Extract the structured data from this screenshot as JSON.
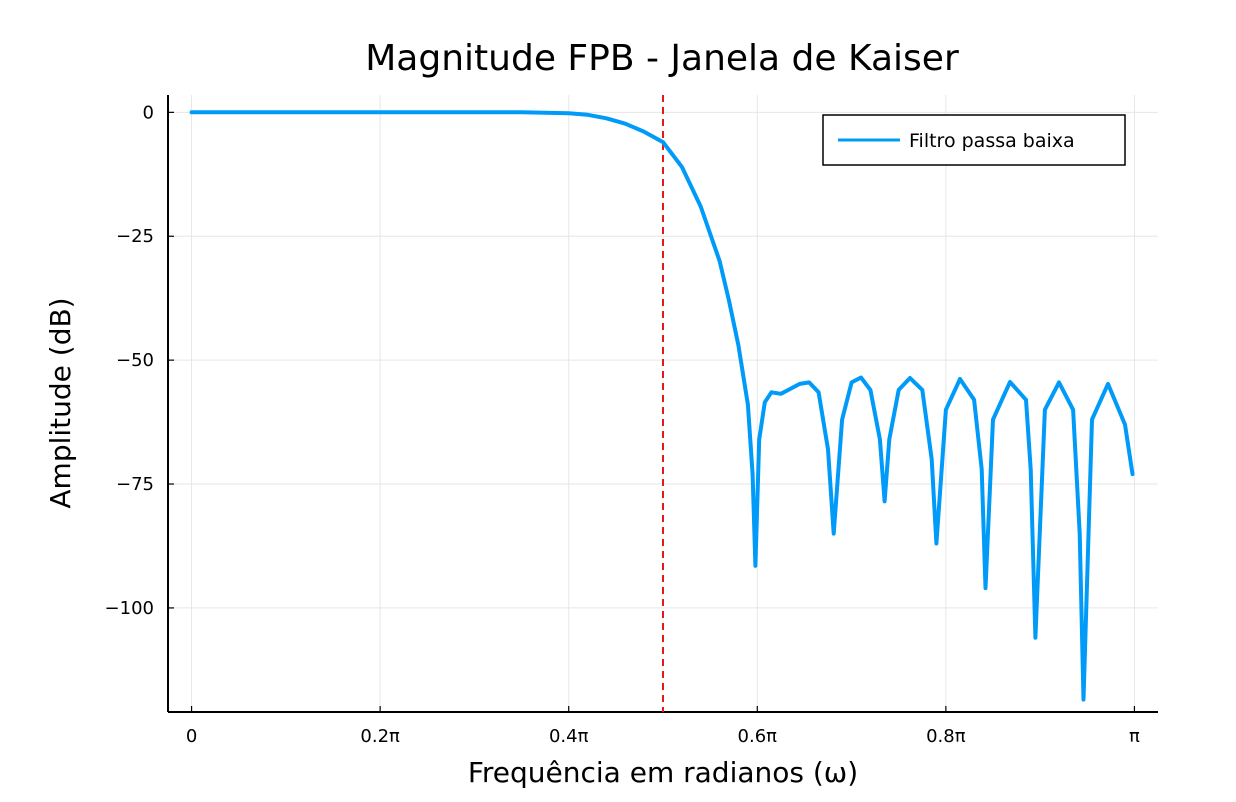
{
  "chart_data": {
    "type": "line",
    "title": "Magnitude FPB - Janela de Kaiser",
    "xlabel": "Frequência em radianos (ω)",
    "ylabel": "Amplitude (dB)",
    "xlim": [
      -0.025,
      1.025
    ],
    "ylim": [
      -121,
      3.5
    ],
    "x_unit": "π rad",
    "grid": true,
    "legend_position": "top-right",
    "x_ticks": [
      {
        "value": 0,
        "label": "0"
      },
      {
        "value": 0.2,
        "label": "0.2π"
      },
      {
        "value": 0.4,
        "label": "0.4π"
      },
      {
        "value": 0.6,
        "label": "0.6π"
      },
      {
        "value": 0.8,
        "label": "0.8π"
      },
      {
        "value": 1.0,
        "label": "π"
      }
    ],
    "y_ticks": [
      {
        "value": 0,
        "label": "0"
      },
      {
        "value": -25,
        "label": "−25"
      },
      {
        "value": -50,
        "label": "−50"
      },
      {
        "value": -75,
        "label": "−75"
      },
      {
        "value": -100,
        "label": "−100"
      }
    ],
    "series": [
      {
        "name": "Filtro passa baixa",
        "color": "#009af9",
        "x": [
          0,
          0.05,
          0.1,
          0.15,
          0.2,
          0.25,
          0.3,
          0.35,
          0.4,
          0.42,
          0.44,
          0.46,
          0.48,
          0.5,
          0.52,
          0.54,
          0.56,
          0.57,
          0.58,
          0.59,
          0.595,
          0.598,
          0.602,
          0.608,
          0.615,
          0.625,
          0.635,
          0.645,
          0.655,
          0.665,
          0.675,
          0.681,
          0.69,
          0.7,
          0.71,
          0.72,
          0.73,
          0.735,
          0.74,
          0.75,
          0.762,
          0.775,
          0.785,
          0.79,
          0.8,
          0.815,
          0.83,
          0.838,
          0.842,
          0.85,
          0.868,
          0.885,
          0.89,
          0.895,
          0.905,
          0.92,
          0.935,
          0.942,
          0.946,
          0.955,
          0.972,
          0.99,
          0.998
        ],
        "y": [
          0,
          0,
          0,
          0,
          0,
          0,
          0,
          0,
          -0.2,
          -0.5,
          -1.2,
          -2.3,
          -3.9,
          -6.0,
          -11,
          -19,
          -30,
          -38,
          -47,
          -59,
          -73,
          -91.5,
          -66,
          -58.5,
          -56.5,
          -56.8,
          -55.8,
          -54.8,
          -54.5,
          -56.5,
          -68,
          -85,
          -62,
          -54.5,
          -53.5,
          -56,
          -66,
          -78.5,
          -66,
          -56,
          -53.6,
          -56,
          -70,
          -87,
          -60,
          -53.8,
          -58,
          -72,
          -96,
          -62,
          -54.4,
          -58,
          -72,
          -106,
          -60,
          -54.5,
          -60,
          -85,
          -118.5,
          -62,
          -54.8,
          -63,
          -73
        ]
      }
    ],
    "reference_lines": [
      {
        "x": 0.5,
        "color": "#e6191a",
        "style": "dashed"
      }
    ]
  }
}
